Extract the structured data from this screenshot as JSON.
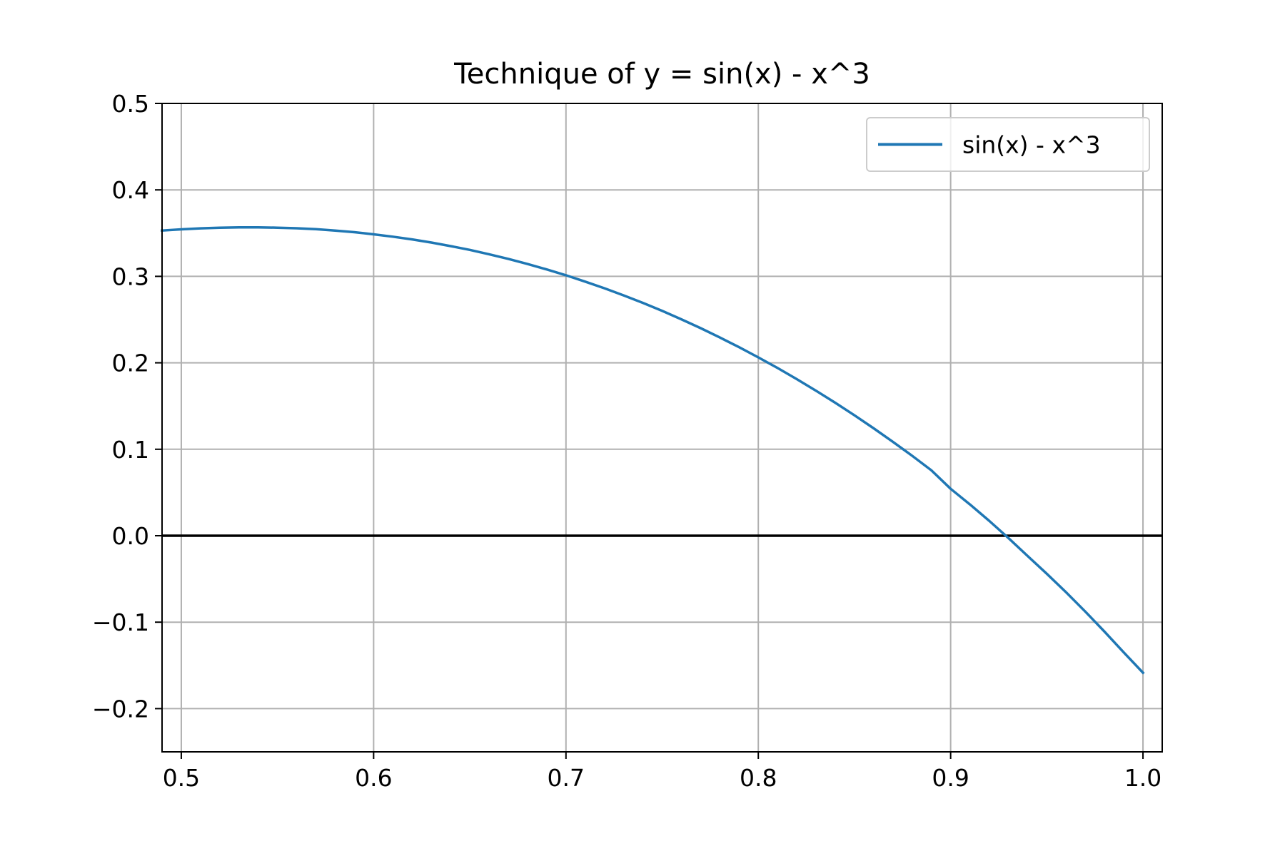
{
  "chart_data": {
    "type": "line",
    "title": "Technique of y = sin(x) - x^3",
    "xlabel": "",
    "ylabel": "",
    "xlim": [
      0.49,
      1.01
    ],
    "ylim": [
      -0.25,
      0.5
    ],
    "x_ticks": [
      0.5,
      0.6,
      0.7,
      0.8,
      0.9,
      1.0
    ],
    "x_tick_labels": [
      "0.5",
      "0.6",
      "0.7",
      "0.8",
      "0.9",
      "1.0"
    ],
    "y_ticks": [
      -0.2,
      -0.1,
      0.0,
      0.1,
      0.2,
      0.3,
      0.4,
      0.5
    ],
    "y_tick_labels": [
      "−0.2",
      "−0.1",
      "0.0",
      "0.1",
      "0.2",
      "0.3",
      "0.4",
      "0.5"
    ],
    "grid": true,
    "legend_position": "top-right",
    "reference_lines": [
      {
        "axis": "y",
        "value": 0.0,
        "color": "#000000"
      }
    ],
    "series": [
      {
        "name": "sin(x) - x^3",
        "color": "#1f77b4",
        "x": [
          0.49,
          0.5,
          0.51,
          0.52,
          0.53,
          0.54,
          0.55,
          0.56,
          0.57,
          0.58,
          0.59,
          0.6,
          0.61,
          0.62,
          0.63,
          0.64,
          0.65,
          0.66,
          0.67,
          0.68,
          0.69,
          0.7,
          0.71,
          0.72,
          0.73,
          0.74,
          0.75,
          0.76,
          0.77,
          0.78,
          0.79,
          0.8,
          0.81,
          0.82,
          0.83,
          0.84,
          0.85,
          0.86,
          0.87,
          0.88,
          0.89,
          0.9,
          0.91,
          0.92,
          0.93,
          0.94,
          0.95,
          0.96,
          0.97,
          0.98,
          0.99,
          1.0
        ],
        "y": [
          0.353,
          0.3544,
          0.3555,
          0.3562,
          0.3566,
          0.3567,
          0.3563,
          0.3556,
          0.3545,
          0.353,
          0.3511,
          0.3486,
          0.3459,
          0.3427,
          0.3391,
          0.335,
          0.3306,
          0.3256,
          0.3202,
          0.3143,
          0.308,
          0.3012,
          0.2939,
          0.2862,
          0.278,
          0.2693,
          0.2601,
          0.2503,
          0.2401,
          0.2293,
          0.2181,
          0.2063,
          0.194,
          0.1811,
          0.1677,
          0.1538,
          0.1393,
          0.1242,
          0.1086,
          0.0924,
          0.0756,
          0.0543,
          0.0362,
          0.0173,
          -0.0026,
          -0.0234,
          -0.044,
          -0.0654,
          -0.0877,
          -0.111,
          -0.135,
          -0.1585
        ]
      }
    ]
  }
}
